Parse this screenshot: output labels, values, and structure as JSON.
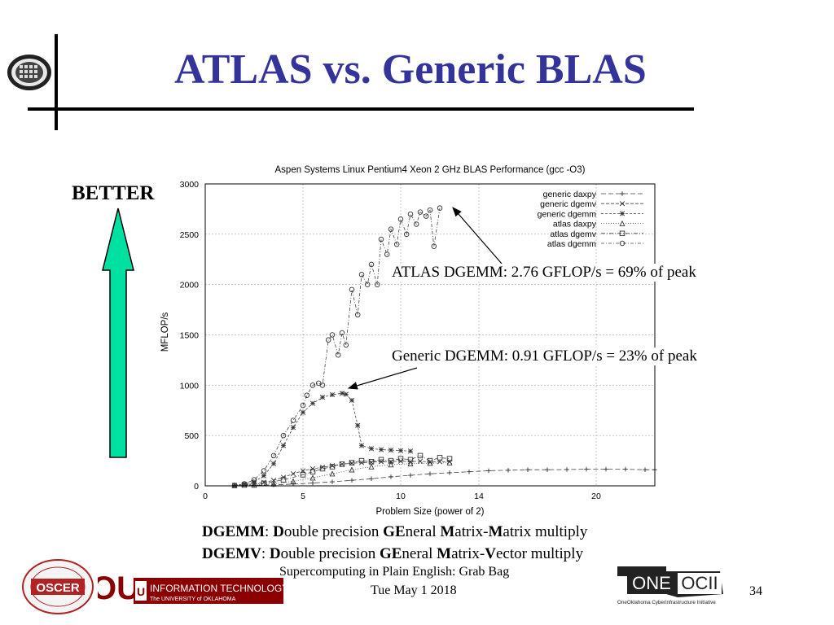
{
  "slide": {
    "title": "ATLAS vs. Generic BLAS",
    "better_label": "BETTER",
    "callout_atlas": "ATLAS DGEMM:   2.76 GFLOP/s = 69% of peak",
    "callout_generic": "Generic DGEMM:   0.91 GFLOP/s = 23% of peak",
    "def_dgemm": {
      "abbr": "DGEMM",
      "sep": ": ",
      "parts": [
        "D",
        "ouble precision ",
        "GE",
        "neral ",
        "M",
        "atrix-",
        "M",
        "atrix multiply"
      ]
    },
    "def_dgemv": {
      "abbr": "DGEMV",
      "sep": ":  ",
      "parts": [
        "D",
        "ouble precision ",
        "GE",
        "neral ",
        "M",
        "atrix-",
        "V",
        "ector multiply"
      ]
    },
    "footer_line1": "Supercomputing in Plain English: Grab Bag",
    "footer_line2": "Tue May 1 2018",
    "page_number": "34",
    "logos": {
      "oscer": "OSCER",
      "ou": "OU",
      "it_name": "INFORMATION TECHNOLOGY",
      "it_sub": "The UNIVERSITY of OKLAHOMA",
      "oneocii_one": "ONE",
      "oneocii_ocii": "OCII",
      "oneocii_tagline": "OneOklahoma Cyberinfrastructure Initiative"
    },
    "colors": {
      "title": "#333399",
      "arrow": "#00e0a0"
    }
  },
  "chart_data": {
    "type": "line",
    "title": "Aspen Systems Linux Pentium4 Xeon 2 GHz BLAS Performance (gcc -O3)",
    "xlabel": "Problem Size (power of 2)",
    "ylabel": "MFLOP/s",
    "xlim": [
      0,
      23
    ],
    "ylim": [
      0,
      3000
    ],
    "xticks": [
      0,
      5,
      10,
      14,
      20
    ],
    "yticks": [
      0,
      500,
      1000,
      1500,
      2000,
      2500,
      3000
    ],
    "grid": true,
    "legend_position": "top-right",
    "series": [
      {
        "name": "generic daxpy",
        "marker": "+",
        "dash": "6,3",
        "x": [
          1.5,
          2.5,
          3.5,
          4.5,
          5.5,
          6.5,
          7.5,
          8.5,
          9.5,
          10.5,
          11.5,
          12.5,
          13.5,
          14.5,
          15.5,
          16.5,
          17.5,
          18.5,
          19.5,
          20.5,
          21.5,
          22.5,
          23
        ],
        "y": [
          2,
          5,
          10,
          18,
          28,
          40,
          55,
          70,
          90,
          105,
          120,
          130,
          140,
          150,
          155,
          160,
          160,
          162,
          165,
          165,
          165,
          160,
          160
        ]
      },
      {
        "name": "generic dgemv",
        "marker": "x",
        "dash": "4,2",
        "x": [
          1.5,
          2,
          2.5,
          3,
          3.5,
          4,
          4.5,
          5,
          5.5,
          6,
          6.5,
          7,
          7.5,
          8,
          8.5,
          9,
          9.5,
          10,
          10.5,
          11,
          11.5,
          12,
          12.5
        ],
        "y": [
          5,
          10,
          20,
          35,
          55,
          85,
          120,
          150,
          170,
          185,
          200,
          215,
          225,
          230,
          235,
          240,
          240,
          245,
          240,
          245,
          235,
          240,
          240
        ]
      },
      {
        "name": "generic dgemm",
        "marker": "*",
        "dash": "3,2",
        "x": [
          1.5,
          2,
          2.5,
          3,
          3.5,
          4,
          4.5,
          5,
          5.5,
          6,
          6.5,
          7,
          7.2,
          7.5,
          7.8,
          8,
          8.5,
          9,
          9.5,
          10,
          10.5
        ],
        "y": [
          5,
          15,
          40,
          100,
          220,
          400,
          580,
          730,
          820,
          880,
          905,
          920,
          910,
          850,
          600,
          400,
          370,
          360,
          355,
          350,
          345
        ]
      },
      {
        "name": "atlas  daxpy",
        "marker": "triangle",
        "dash": "1,2",
        "x": [
          1.5,
          2.5,
          3.5,
          4.5,
          5.5,
          6.5,
          7.5,
          8.5,
          9.5,
          10.5,
          11.5,
          12.5
        ],
        "y": [
          3,
          8,
          20,
          45,
          80,
          120,
          160,
          190,
          210,
          220,
          225,
          230
        ]
      },
      {
        "name": "atlas  dgemv",
        "marker": "square",
        "dash": "5,2,1,2",
        "x": [
          2,
          3,
          4,
          5,
          5.5,
          6,
          6.5,
          7,
          7.5,
          8,
          8.5,
          9,
          9.5,
          10,
          10.5,
          11,
          11.5,
          12,
          12.5
        ],
        "y": [
          8,
          25,
          60,
          110,
          140,
          170,
          190,
          215,
          230,
          250,
          240,
          260,
          250,
          270,
          260,
          300,
          250,
          280,
          270
        ]
      },
      {
        "name": "atlas  dgemm",
        "marker": "circle",
        "dash": "4,2,1,2",
        "x": [
          1.5,
          2,
          2.5,
          3,
          3.5,
          4,
          4.5,
          5,
          5.2,
          5.5,
          5.8,
          6,
          6.3,
          6.5,
          6.8,
          7,
          7.2,
          7.5,
          7.8,
          8,
          8.3,
          8.5,
          8.8,
          9,
          9.3,
          9.5,
          9.8,
          10,
          10.3,
          10.5,
          10.8,
          11,
          11.3,
          11.5,
          11.7,
          12
        ],
        "y": [
          5,
          20,
          60,
          150,
          300,
          500,
          650,
          800,
          900,
          1000,
          1020,
          1000,
          1450,
          1500,
          1300,
          1520,
          1400,
          1950,
          1700,
          2100,
          2000,
          2200,
          2000,
          2450,
          2300,
          2550,
          2400,
          2650,
          2500,
          2700,
          2600,
          2720,
          2680,
          2740,
          2380,
          2760
        ]
      }
    ]
  }
}
